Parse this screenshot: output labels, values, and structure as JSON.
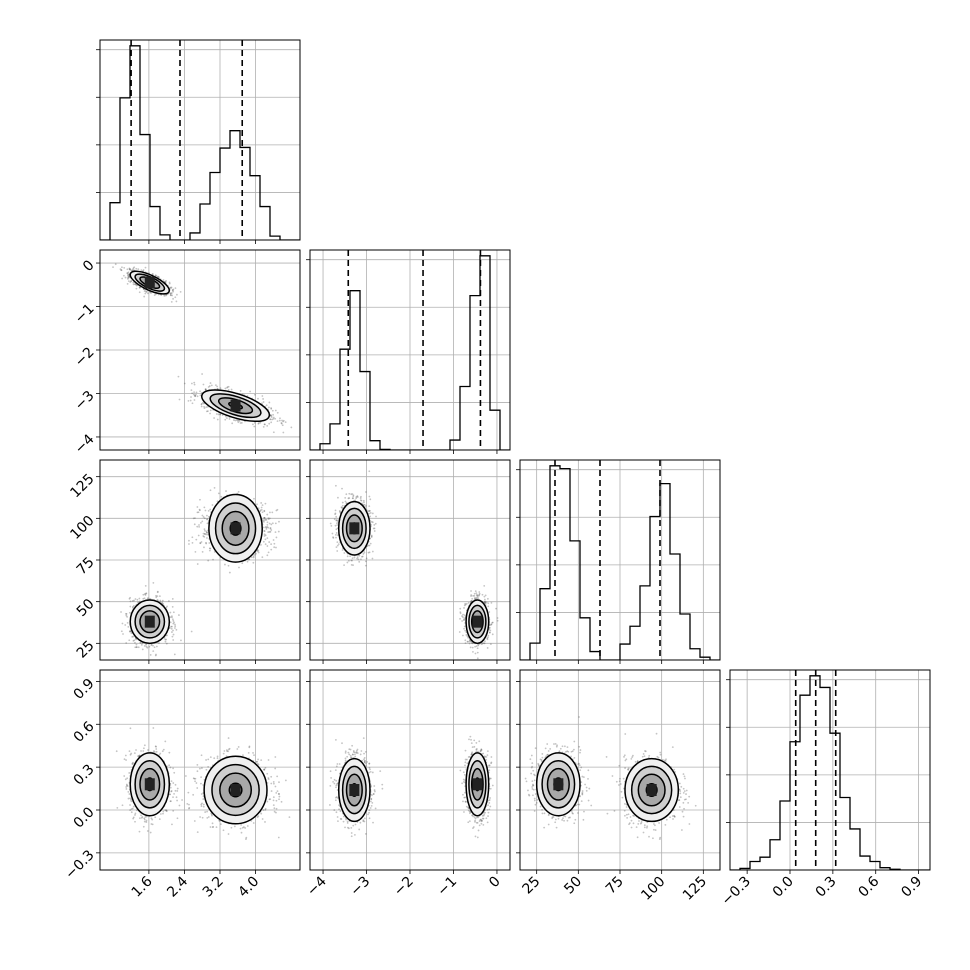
{
  "chart_data": {
    "type": "corner",
    "grid": true,
    "grayscale": true,
    "parameters": [
      {
        "range": [
          0.5,
          5.0
        ],
        "tick_labels": [
          "1.6",
          "2.4",
          "3.2",
          "4.0"
        ],
        "tick_values": [
          1.6,
          2.4,
          3.2,
          4.0
        ],
        "hist_bin_edges": [
          0.5,
          0.725,
          0.95,
          1.175,
          1.4,
          1.625,
          1.85,
          2.075,
          2.3,
          2.525,
          2.75,
          2.975,
          3.2,
          3.425,
          3.65,
          3.875,
          4.1,
          4.325,
          4.55,
          4.775,
          5.0
        ],
        "hist_counts": [
          0,
          580,
          2210,
          3020,
          1640,
          520,
          80,
          0,
          0,
          110,
          560,
          1050,
          1430,
          1700,
          1440,
          1000,
          520,
          60,
          0,
          0
        ],
        "quantiles": [
          1.2,
          2.3,
          3.7
        ]
      },
      {
        "range": [
          -4.3,
          0.3
        ],
        "tick_labels": [
          "−4",
          "−3",
          "−2",
          "−1",
          "0"
        ],
        "tick_values": [
          -4,
          -3,
          -2,
          -1,
          0
        ],
        "hist_bin_edges": [
          -4.3,
          -4.07,
          -3.84,
          -3.61,
          -3.38,
          -3.15,
          -2.92,
          -2.69,
          -2.46,
          -2.23,
          -2.0,
          -1.77,
          -1.54,
          -1.31,
          -1.08,
          -0.85,
          -0.62,
          -0.39,
          -0.16,
          0.07,
          0.3
        ],
        "hist_counts": [
          0,
          100,
          420,
          1620,
          2560,
          1260,
          150,
          10,
          0,
          0,
          0,
          0,
          0,
          0,
          160,
          1020,
          2480,
          3120,
          640,
          0
        ],
        "quantiles": [
          -3.42,
          -1.7,
          -0.38
        ]
      },
      {
        "range": [
          15,
          135
        ],
        "tick_labels": [
          "25",
          "50",
          "75",
          "100",
          "125"
        ],
        "tick_values": [
          25,
          50,
          75,
          100,
          125
        ],
        "hist_bin_edges": [
          15,
          21,
          27,
          33,
          39,
          45,
          51,
          57,
          63,
          69,
          75,
          81,
          87,
          93,
          99,
          105,
          111,
          117,
          123,
          129,
          135
        ],
        "hist_counts": [
          0,
          180,
          760,
          2070,
          2040,
          1270,
          450,
          90,
          0,
          0,
          170,
          360,
          790,
          1530,
          1880,
          1130,
          490,
          120,
          30,
          0
        ],
        "quantiles": [
          36,
          63,
          99
        ]
      },
      {
        "range": [
          -0.42,
          0.98
        ],
        "tick_labels": [
          "−0.3",
          "0.0",
          "0.3",
          "0.6",
          "0.9"
        ],
        "tick_values": [
          -0.3,
          0.0,
          0.3,
          0.6,
          0.9
        ],
        "hist_bin_edges": [
          -0.42,
          -0.35,
          -0.28,
          -0.21,
          -0.14,
          -0.07,
          0.0,
          0.07,
          0.14,
          0.21,
          0.28,
          0.35,
          0.42,
          0.49,
          0.56,
          0.63,
          0.7,
          0.77,
          0.84,
          0.91,
          0.98
        ],
        "hist_counts": [
          0,
          40,
          220,
          330,
          780,
          1780,
          3310,
          4510,
          5010,
          4710,
          3530,
          1870,
          1060,
          360,
          220,
          60,
          20,
          0,
          0,
          0
        ],
        "quantiles": [
          0.04,
          0.18,
          0.32
        ]
      }
    ],
    "modes": [
      {
        "mean": [
          1.62,
          -0.45,
          38,
          0.18
        ],
        "sd": [
          0.22,
          0.13,
          6.5,
          0.11
        ],
        "rho01": -0.7
      },
      {
        "mean": [
          3.55,
          -3.28,
          94,
          0.14
        ],
        "sd": [
          0.38,
          0.18,
          8,
          0.11
        ],
        "rho01": -0.6
      }
    ],
    "contour_levels": [
      0.4,
      1.0,
      1.5,
      2.0
    ]
  }
}
